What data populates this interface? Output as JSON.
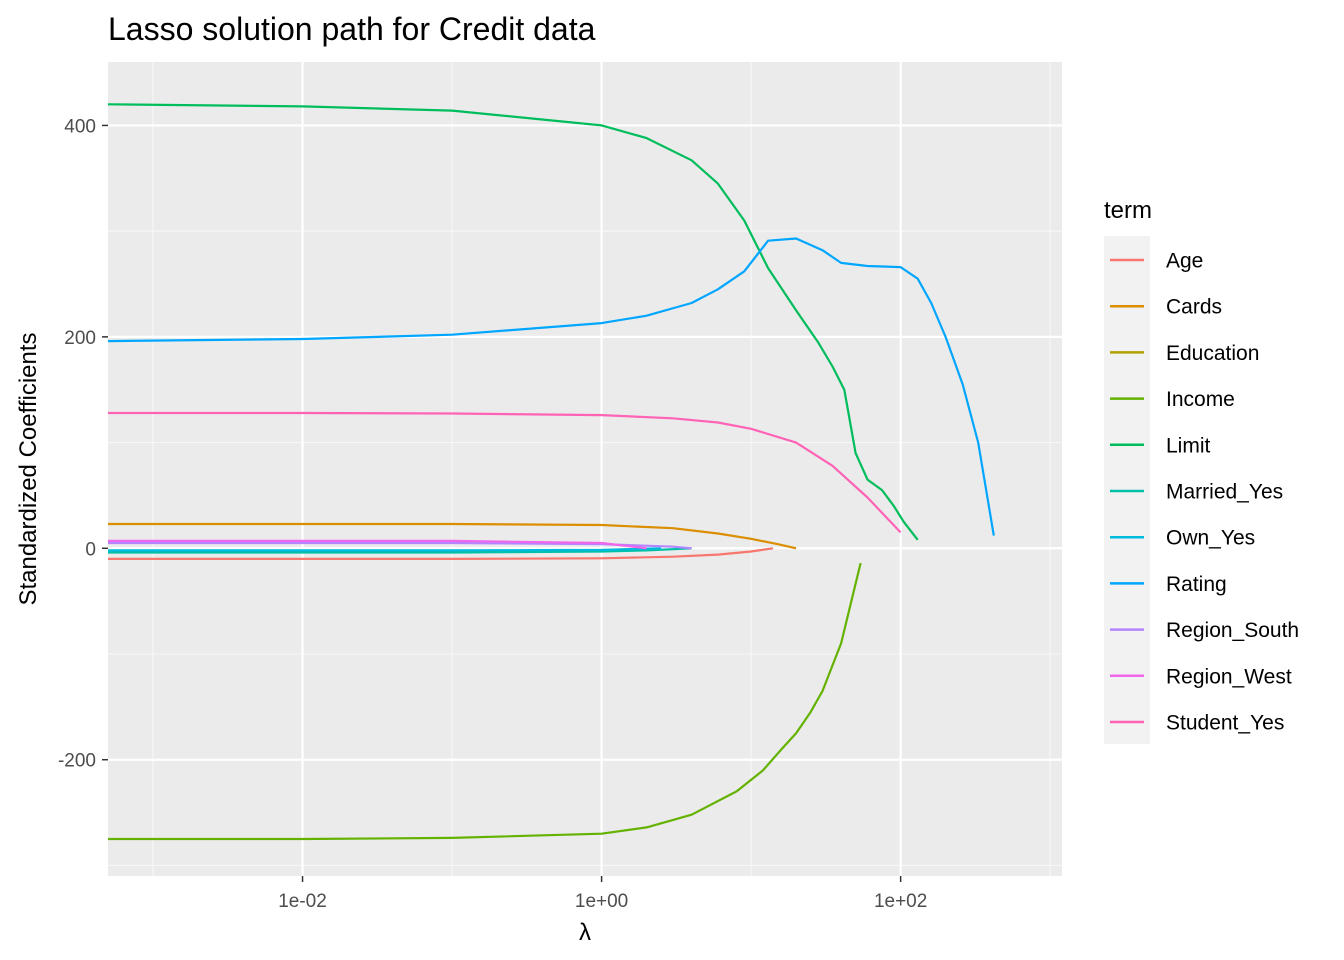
{
  "chart_data": {
    "type": "line",
    "title": "Lasso solution path for Credit data",
    "xlabel": "λ",
    "ylabel": "Standardized Coefficients",
    "x_scale": "log10",
    "xlim": [
      0.0005,
      1200
    ],
    "ylim": [
      -310,
      460
    ],
    "x_ticks": [
      {
        "value": 0.01,
        "label": "1e-02"
      },
      {
        "value": 1,
        "label": "1e+00"
      },
      {
        "value": 100,
        "label": "1e+02"
      }
    ],
    "y_ticks": [
      {
        "value": -200,
        "label": "-200"
      },
      {
        "value": 0,
        "label": "0"
      },
      {
        "value": 200,
        "label": "200"
      },
      {
        "value": 400,
        "label": "400"
      }
    ],
    "grid": true,
    "legend": {
      "title": "term",
      "position": "right"
    },
    "series": [
      {
        "name": "Age",
        "color": "#F8766D",
        "x": [
          0.0005,
          0.01,
          0.1,
          1,
          3,
          6,
          10,
          14
        ],
        "y": [
          -10,
          -10,
          -10,
          -9.5,
          -8,
          -6,
          -3,
          0
        ]
      },
      {
        "name": "Cards",
        "color": "#DB8E00",
        "x": [
          0.0005,
          0.01,
          0.1,
          1,
          3,
          6,
          10,
          15,
          20
        ],
        "y": [
          23,
          23,
          23,
          22,
          19,
          14,
          9,
          4,
          0
        ]
      },
      {
        "name": "Education",
        "color": "#AEA200",
        "x": [
          0.0005,
          0.01,
          0.1,
          1,
          2
        ],
        "y": [
          -3,
          -3,
          -3,
          -2,
          0
        ]
      },
      {
        "name": "Income",
        "color": "#64B200",
        "x": [
          0.0005,
          0.01,
          0.1,
          1,
          2,
          4,
          8,
          12,
          16,
          20,
          25,
          30,
          40,
          54
        ],
        "y": [
          -275,
          -275,
          -274,
          -270,
          -264,
          -252,
          -230,
          -210,
          -190,
          -175,
          -155,
          -135,
          -90,
          -14
        ]
      },
      {
        "name": "Limit",
        "color": "#00BD5C",
        "x": [
          0.0005,
          0.01,
          0.1,
          1,
          2,
          4,
          6,
          9,
          13,
          20,
          28,
          35,
          42,
          50,
          60,
          75,
          90,
          105,
          130
        ],
        "y": [
          420,
          418,
          414,
          400,
          388,
          367,
          345,
          310,
          265,
          225,
          195,
          172,
          150,
          90,
          65,
          55,
          40,
          25,
          8
        ]
      },
      {
        "name": "Married_Yes",
        "color": "#00C1A7",
        "x": [
          0.0005,
          0.01,
          0.1,
          1,
          2,
          4
        ],
        "y": [
          -4,
          -4,
          -4,
          -3,
          -2,
          0
        ]
      },
      {
        "name": "Own_Yes",
        "color": "#00BADE",
        "x": [
          0.0005,
          0.01,
          0.1,
          1,
          2.5
        ],
        "y": [
          -2,
          -2,
          -2,
          -1.5,
          0
        ]
      },
      {
        "name": "Rating",
        "color": "#00A6FF",
        "x": [
          0.0005,
          0.01,
          0.1,
          1,
          2,
          4,
          6,
          9,
          13,
          20,
          30,
          40,
          60,
          100,
          130,
          160,
          200,
          260,
          330,
          420
        ],
        "y": [
          196,
          198,
          202,
          213,
          220,
          232,
          245,
          262,
          291,
          293,
          282,
          270,
          267,
          266,
          255,
          232,
          200,
          155,
          100,
          12
        ]
      },
      {
        "name": "Region_South",
        "color": "#B385FF",
        "x": [
          0.0005,
          0.01,
          0.1,
          1,
          3,
          4
        ],
        "y": [
          5,
          5,
          5,
          4,
          1.5,
          0
        ]
      },
      {
        "name": "Region_West",
        "color": "#EF67EB",
        "x": [
          0.0005,
          0.01,
          0.1,
          1,
          2
        ],
        "y": [
          7,
          7,
          7,
          5,
          0
        ]
      },
      {
        "name": "Student_Yes",
        "color": "#FF63B6",
        "x": [
          0.0005,
          0.01,
          0.1,
          1,
          3,
          6,
          10,
          20,
          35,
          60,
          100
        ],
        "y": [
          128,
          128,
          127.5,
          126,
          123,
          119,
          113,
          100,
          78,
          48,
          15
        ]
      }
    ]
  }
}
